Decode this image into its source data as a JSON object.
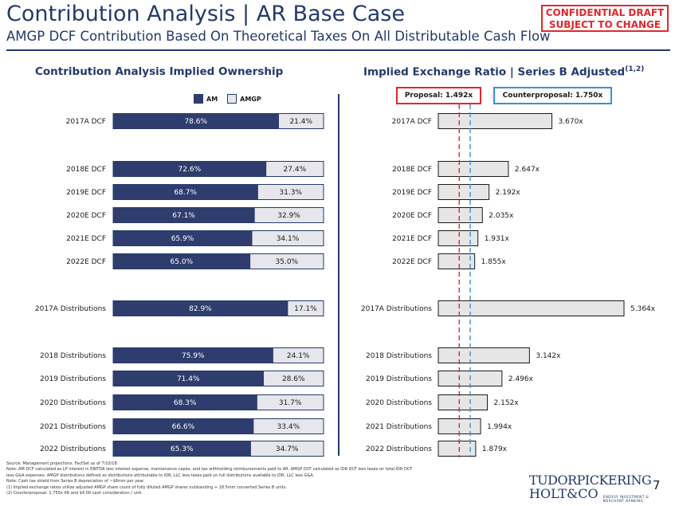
{
  "header": {
    "title": "Contribution Analysis | AR Base Case",
    "subtitle": "AMGP DCF Contribution Based On Theoretical Taxes On All Distributable Cash Flow",
    "confidential_line1": "CONFIDENTIAL DRAFT",
    "confidential_line2": "SUBJECT TO CHANGE"
  },
  "colors": {
    "brand": "#243a6b",
    "am_bar": "#2f3d6e",
    "amgp_bar": "#e6e6ec",
    "ratio_bar": "#e6e6e6",
    "proposal": "#e0282c",
    "counterproposal": "#3d8fd6"
  },
  "left_section_title": "Contribution Analysis Implied Ownership",
  "right_section_title": "Implied Exchange Ratio | Series B Adjusted",
  "right_section_title_sup": "(1,2)",
  "legend": {
    "am": "AM",
    "amgp": "AMGP"
  },
  "reference": {
    "proposal_label": "Proposal: 1.492x",
    "counterproposal_label": "Counterproposal: 1.750x"
  },
  "chart_data": [
    {
      "type": "bar",
      "orientation": "horizontal",
      "stacked": true,
      "percent": true,
      "title": "Contribution Analysis Implied Ownership",
      "categories": [
        "2017A DCF",
        "2018E DCF",
        "2019E DCF",
        "2020E DCF",
        "2021E DCF",
        "2022E DCF",
        "2017A Distributions",
        "2018 Distributions",
        "2019 Distributions",
        "2020 Distributions",
        "2021 Distributions",
        "2022 Distributions"
      ],
      "series": [
        {
          "name": "AM",
          "values": [
            78.6,
            72.6,
            68.7,
            67.1,
            65.9,
            65.0,
            82.9,
            75.9,
            71.4,
            68.3,
            66.6,
            65.3
          ],
          "labels": [
            "78.6%",
            "72.6%",
            "68.7%",
            "67.1%",
            "65.9%",
            "65.0%",
            "82.9%",
            "75.9%",
            "71.4%",
            "68.3%",
            "66.6%",
            "65.3%"
          ]
        },
        {
          "name": "AMGP",
          "values": [
            21.4,
            27.4,
            31.3,
            32.9,
            34.1,
            35.0,
            17.1,
            24.1,
            28.6,
            31.7,
            33.4,
            34.7
          ],
          "labels": [
            "21.4%",
            "27.4%",
            "31.3%",
            "32.9%",
            "34.1%",
            "35.0%",
            "17.1%",
            "24.1%",
            "28.6%",
            "31.7%",
            "33.4%",
            "34.7%"
          ]
        }
      ],
      "xlim": [
        0,
        100
      ],
      "legend": "top"
    },
    {
      "type": "bar",
      "orientation": "horizontal",
      "title": "Implied Exchange Ratio | Series B Adjusted",
      "categories": [
        "2017A DCF",
        "2018E DCF",
        "2019E DCF",
        "2020E DCF",
        "2021E DCF",
        "2022E DCF",
        "2017A Distributions",
        "2018 Distributions",
        "2019 Distributions",
        "2020 Distributions",
        "2021 Distributions",
        "2022 Distributions"
      ],
      "values": [
        3.67,
        2.647,
        2.192,
        2.035,
        1.931,
        1.855,
        5.364,
        3.142,
        2.496,
        2.152,
        1.994,
        1.879
      ],
      "labels": [
        "3.670x",
        "2.647x",
        "2.192x",
        "2.035x",
        "1.931x",
        "1.855x",
        "5.364x",
        "3.142x",
        "2.496x",
        "2.152x",
        "1.994x",
        "1.879x"
      ],
      "xlim": [
        1.0,
        5.364
      ],
      "reference_lines": [
        {
          "value": 1.492,
          "style": "dashed"
        },
        {
          "value": 1.75,
          "style": "dashed"
        }
      ]
    }
  ],
  "footnotes": [
    "Source: Management projections. FactSet as of 7/10/18.",
    "Note: AM DCF calculated as LP interest in EBITDA less interest expense, maintenance capex, and tax withholding reimbursements paid to AR. AMGP DCF calculated as IDR DCF less taxes on total IDR DCF",
    "less G&A expenses. AMGP distributions defined as distributions attributable to IDR, LLC less taxes paid on full distributions available to IDR, LLC less G&A.",
    "Note: Cash tax shield from Series B depreciation of ~$6mm per year.",
    "(1)      Implied exchange ratios utilize adjusted AMGP share count of fully diluted AMGP shares outstanding + 18.5mm converted Series B units.",
    "(2)      Counterproposal: 1.750x XR and $4.00 cash consideration / unit."
  ],
  "logo": {
    "line1": "TUDORPICKERING",
    "line2": "HOLT&CO",
    "tag1": "ENERGY INVESTMENT &",
    "tag2": "MERCHANT BANKING"
  },
  "page_number": "7"
}
